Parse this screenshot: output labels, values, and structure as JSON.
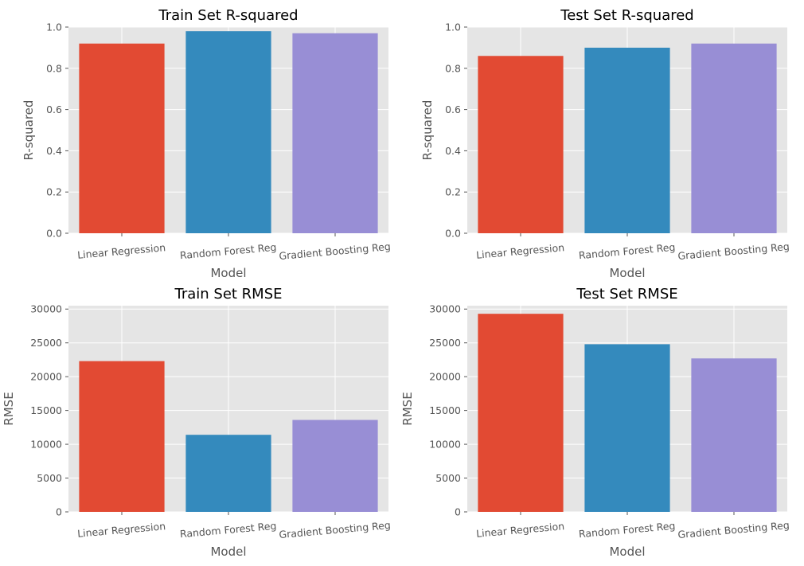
{
  "chart_data": [
    {
      "type": "bar",
      "title": "Train Set R-squared",
      "xlabel": "Model",
      "ylabel": "R-squared",
      "categories": [
        "Linear Regression",
        "Random Forest Reg",
        "Gradient Boosting Reg"
      ],
      "values": [
        0.92,
        0.98,
        0.97
      ],
      "ylim": [
        0,
        1.0
      ],
      "yticks": [
        "0.0",
        "0.2",
        "0.4",
        "0.6",
        "0.8",
        "1.0"
      ],
      "colors": [
        "#E24A33",
        "#348ABD",
        "#988ED5"
      ],
      "grid": true
    },
    {
      "type": "bar",
      "title": "Test Set R-squared",
      "xlabel": "Model",
      "ylabel": "R-squared",
      "categories": [
        "Linear Regression",
        "Random Forest Reg",
        "Gradient Boosting Reg"
      ],
      "values": [
        0.86,
        0.9,
        0.92
      ],
      "ylim": [
        0,
        1.0
      ],
      "yticks": [
        "0.0",
        "0.2",
        "0.4",
        "0.6",
        "0.8",
        "1.0"
      ],
      "colors": [
        "#E24A33",
        "#348ABD",
        "#988ED5"
      ],
      "grid": true
    },
    {
      "type": "bar",
      "title": "Train Set RMSE",
      "xlabel": "Model",
      "ylabel": "RMSE",
      "categories": [
        "Linear Regression",
        "Random Forest Reg",
        "Gradient Boosting Reg"
      ],
      "values": [
        22300,
        11400,
        13600
      ],
      "ylim": [
        0,
        30500
      ],
      "yticks": [
        "0",
        "5000",
        "10000",
        "15000",
        "20000",
        "25000",
        "30000"
      ],
      "colors": [
        "#E24A33",
        "#348ABD",
        "#988ED5"
      ],
      "grid": true
    },
    {
      "type": "bar",
      "title": "Test Set RMSE",
      "xlabel": "Model",
      "ylabel": "RMSE",
      "categories": [
        "Linear Regression",
        "Random Forest Reg",
        "Gradient Boosting Reg"
      ],
      "values": [
        29300,
        24800,
        22700
      ],
      "ylim": [
        0,
        30500
      ],
      "yticks": [
        "0",
        "5000",
        "10000",
        "15000",
        "20000",
        "25000",
        "30000"
      ],
      "colors": [
        "#E24A33",
        "#348ABD",
        "#988ED5"
      ],
      "grid": true
    }
  ]
}
